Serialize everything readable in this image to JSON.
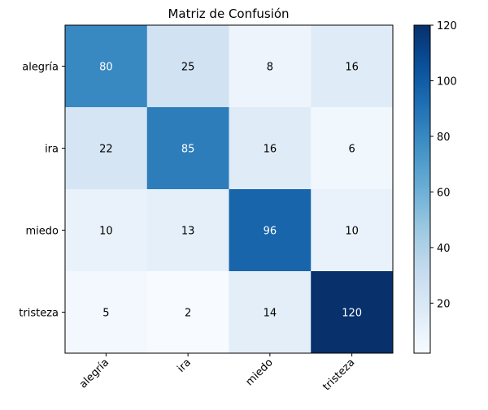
{
  "chart_data": {
    "type": "heatmap",
    "title": "Matriz de Confusión",
    "row_labels": [
      "alegría",
      "ira",
      "miedo",
      "tristeza"
    ],
    "col_labels": [
      "alegría",
      "ira",
      "miedo",
      "tristeza"
    ],
    "values": [
      [
        80,
        25,
        8,
        16
      ],
      [
        22,
        85,
        16,
        6
      ],
      [
        10,
        13,
        96,
        10
      ],
      [
        5,
        2,
        14,
        120
      ]
    ],
    "colormap": "Blues",
    "color_range": [
      2,
      120
    ],
    "colorbar_ticks": [
      20,
      40,
      60,
      80,
      100,
      120
    ],
    "text_colors": {
      "light_cells": "#000000",
      "dark_cells": "#ffffff"
    }
  }
}
